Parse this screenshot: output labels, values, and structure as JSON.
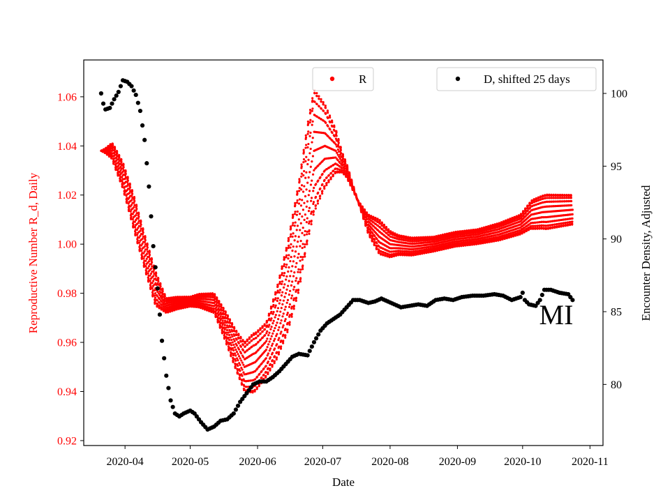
{
  "chart_data": {
    "type": "scatter",
    "title": "",
    "xlabel": "Date",
    "ylabel_left": "Reproductive Number R_d, Daily",
    "ylabel_right": "Encounter Density, Adjusted",
    "xlim": [
      "2020-03-13",
      "2020-11-07"
    ],
    "ylim_left": [
      0.918,
      1.075
    ],
    "ylim_right": [
      75.8,
      102.3
    ],
    "x_ticks": [
      "2020-04-01",
      "2020-05-01",
      "2020-06-01",
      "2020-07-01",
      "2020-08-01",
      "2020-09-01",
      "2020-10-01",
      "2020-11-01"
    ],
    "x_tick_labels": [
      "2020-04",
      "2020-05",
      "2020-06",
      "2020-07",
      "2020-08",
      "2020-09",
      "2020-10",
      "2020-11"
    ],
    "y_left_ticks": [
      0.92,
      0.94,
      0.96,
      0.98,
      1.0,
      1.02,
      1.04,
      1.06
    ],
    "y_left_tick_labels": [
      "0.92",
      "0.94",
      "0.96",
      "0.98",
      "1.00",
      "1.02",
      "1.04",
      "1.06"
    ],
    "y_right_ticks": [
      80,
      85,
      90,
      95,
      100
    ],
    "y_right_tick_labels": [
      "80",
      "85",
      "90",
      "95",
      "100"
    ],
    "left_axis_color": "#ff0000",
    "annotation": "MI",
    "legends": [
      {
        "label": "R",
        "color": "#ff0000",
        "placement": "top-center"
      },
      {
        "label": "D, shifted 25 days",
        "color": "#000000",
        "placement": "top-right"
      }
    ],
    "series": [
      {
        "name": "R",
        "axis": "left",
        "color": "#ff0000",
        "style": "band",
        "start": "2020-03-21",
        "end": "2020-10-24",
        "center_knots": [
          [
            "2020-03-21",
            1.038
          ],
          [
            "2020-03-26",
            1.038
          ],
          [
            "2020-03-31",
            1.028
          ],
          [
            "2020-04-05",
            1.013
          ],
          [
            "2020-04-10",
            0.997
          ],
          [
            "2020-04-15",
            0.982
          ],
          [
            "2020-04-20",
            0.975
          ],
          [
            "2020-04-25",
            0.976
          ],
          [
            "2020-05-05",
            0.977
          ],
          [
            "2020-05-12",
            0.976
          ],
          [
            "2020-05-17",
            0.967
          ],
          [
            "2020-05-22",
            0.957
          ],
          [
            "2020-05-26",
            0.95
          ],
          [
            "2020-05-31",
            0.952
          ],
          [
            "2020-06-05",
            0.957
          ],
          [
            "2020-06-10",
            0.968
          ],
          [
            "2020-06-15",
            0.983
          ],
          [
            "2020-06-20",
            1.003
          ],
          [
            "2020-06-24",
            1.025
          ],
          [
            "2020-06-27",
            1.038
          ],
          [
            "2020-07-02",
            1.04
          ],
          [
            "2020-07-07",
            1.038
          ],
          [
            "2020-07-12",
            1.03
          ],
          [
            "2020-07-17",
            1.018
          ],
          [
            "2020-07-22",
            1.008
          ],
          [
            "2020-07-27",
            1.003
          ],
          [
            "2020-08-01",
            1.0
          ],
          [
            "2020-08-11",
            0.999
          ],
          [
            "2020-08-21",
            1.0
          ],
          [
            "2020-08-31",
            1.002
          ],
          [
            "2020-09-10",
            1.003
          ],
          [
            "2020-09-20",
            1.005
          ],
          [
            "2020-09-30",
            1.008
          ],
          [
            "2020-10-05",
            1.012
          ],
          [
            "2020-10-10",
            1.013
          ],
          [
            "2020-10-24",
            1.014
          ]
        ],
        "spread_knots": [
          [
            "2020-03-21",
            0.0
          ],
          [
            "2020-03-23",
            0.001
          ],
          [
            "2020-03-27",
            0.004
          ],
          [
            "2020-04-05",
            0.007
          ],
          [
            "2020-04-15",
            0.007
          ],
          [
            "2020-04-20",
            0.003
          ],
          [
            "2020-05-01",
            0.002
          ],
          [
            "2020-05-12",
            0.004
          ],
          [
            "2020-05-22",
            0.008
          ],
          [
            "2020-05-30",
            0.012
          ],
          [
            "2020-06-05",
            0.011
          ],
          [
            "2020-06-12",
            0.016
          ],
          [
            "2020-06-20",
            0.022
          ],
          [
            "2020-06-27",
            0.025
          ],
          [
            "2020-07-05",
            0.012
          ],
          [
            "2020-07-10",
            0.004
          ],
          [
            "2020-07-17",
            0.0
          ],
          [
            "2020-07-22",
            0.004
          ],
          [
            "2020-07-27",
            0.007
          ],
          [
            "2020-08-05",
            0.004
          ],
          [
            "2020-08-21",
            0.003
          ],
          [
            "2020-09-10",
            0.003
          ],
          [
            "2020-09-30",
            0.004
          ],
          [
            "2020-10-06",
            0.006
          ],
          [
            "2020-10-12",
            0.007
          ],
          [
            "2020-10-24",
            0.006
          ]
        ]
      },
      {
        "name": "D, shifted 25 days",
        "axis": "right",
        "color": "#000000",
        "style": "points",
        "knots": [
          [
            "2020-03-21",
            100.0
          ],
          [
            "2020-03-22",
            99.3
          ],
          [
            "2020-03-23",
            98.9
          ],
          [
            "2020-03-25",
            99.0
          ],
          [
            "2020-03-27",
            99.6
          ],
          [
            "2020-03-29",
            100.1
          ],
          [
            "2020-03-31",
            100.9
          ],
          [
            "2020-04-02",
            100.8
          ],
          [
            "2020-04-04",
            100.5
          ],
          [
            "2020-04-06",
            99.9
          ],
          [
            "2020-04-08",
            98.8
          ],
          [
            "2020-04-10",
            96.8
          ],
          [
            "2020-04-12",
            93.6
          ],
          [
            "2020-04-14",
            89.5
          ],
          [
            "2020-04-16",
            86.6
          ],
          [
            "2020-04-18",
            83.0
          ],
          [
            "2020-04-20",
            80.6
          ],
          [
            "2020-04-22",
            78.9
          ],
          [
            "2020-04-24",
            78.0
          ],
          [
            "2020-04-26",
            77.8
          ],
          [
            "2020-04-28",
            78.0
          ],
          [
            "2020-05-01",
            78.2
          ],
          [
            "2020-05-03",
            78.0
          ],
          [
            "2020-05-06",
            77.4
          ],
          [
            "2020-05-09",
            76.9
          ],
          [
            "2020-05-12",
            77.1
          ],
          [
            "2020-05-15",
            77.5
          ],
          [
            "2020-05-18",
            77.6
          ],
          [
            "2020-05-21",
            78.0
          ],
          [
            "2020-05-24",
            78.8
          ],
          [
            "2020-05-27",
            79.4
          ],
          [
            "2020-05-30",
            80.0
          ],
          [
            "2020-06-02",
            80.2
          ],
          [
            "2020-06-05",
            80.2
          ],
          [
            "2020-06-08",
            80.5
          ],
          [
            "2020-06-11",
            80.9
          ],
          [
            "2020-06-14",
            81.4
          ],
          [
            "2020-06-17",
            81.9
          ],
          [
            "2020-06-20",
            82.1
          ],
          [
            "2020-06-24",
            82.0
          ],
          [
            "2020-06-27",
            82.9
          ],
          [
            "2020-06-30",
            83.7
          ],
          [
            "2020-07-03",
            84.2
          ],
          [
            "2020-07-06",
            84.5
          ],
          [
            "2020-07-09",
            84.8
          ],
          [
            "2020-07-12",
            85.3
          ],
          [
            "2020-07-15",
            85.8
          ],
          [
            "2020-07-18",
            85.8
          ],
          [
            "2020-07-22",
            85.6
          ],
          [
            "2020-07-25",
            85.7
          ],
          [
            "2020-07-28",
            85.9
          ],
          [
            "2020-07-31",
            85.7
          ],
          [
            "2020-08-03",
            85.5
          ],
          [
            "2020-08-06",
            85.3
          ],
          [
            "2020-08-10",
            85.4
          ],
          [
            "2020-08-14",
            85.5
          ],
          [
            "2020-08-18",
            85.4
          ],
          [
            "2020-08-22",
            85.8
          ],
          [
            "2020-08-26",
            85.9
          ],
          [
            "2020-08-30",
            85.8
          ],
          [
            "2020-09-03",
            86.0
          ],
          [
            "2020-09-08",
            86.1
          ],
          [
            "2020-09-13",
            86.1
          ],
          [
            "2020-09-18",
            86.2
          ],
          [
            "2020-09-22",
            86.1
          ],
          [
            "2020-09-26",
            85.8
          ],
          [
            "2020-09-30",
            86.0
          ],
          [
            "2020-10-01",
            86.3
          ],
          [
            "2020-10-02",
            85.8
          ],
          [
            "2020-10-04",
            85.5
          ],
          [
            "2020-10-07",
            85.4
          ],
          [
            "2020-10-09",
            85.8
          ],
          [
            "2020-10-11",
            86.5
          ],
          [
            "2020-10-14",
            86.5
          ],
          [
            "2020-10-18",
            86.3
          ],
          [
            "2020-10-22",
            86.2
          ],
          [
            "2020-10-24",
            85.8
          ]
        ]
      }
    ]
  }
}
